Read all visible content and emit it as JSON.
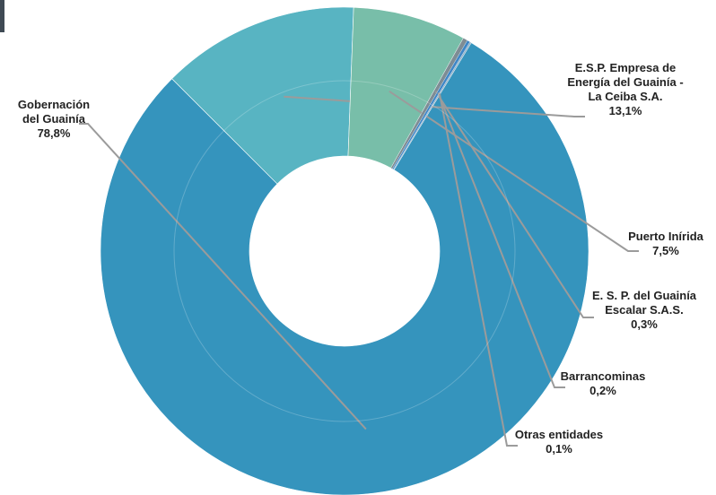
{
  "chart_data": {
    "type": "pie",
    "subtype": "donut",
    "slices": [
      {
        "name_lines": [
          "Gobernación",
          "del Guainía"
        ],
        "value": 78.8,
        "value_label": "78,8%",
        "color": "#3594bd"
      },
      {
        "name_lines": [
          "E.S.P. Empresa de",
          "Energía del Guainía -",
          "La Ceiba S.A."
        ],
        "value": 13.1,
        "value_label": "13,1%",
        "color": "#58b4c2"
      },
      {
        "name_lines": [
          "Puerto Inírida"
        ],
        "value": 7.5,
        "value_label": "7,5%",
        "color": "#78bea9"
      },
      {
        "name_lines": [
          "E. S. P. del Guainía",
          "Escalar S.A.S."
        ],
        "value": 0.3,
        "value_label": "0,3%",
        "color": "#7e8c94"
      },
      {
        "name_lines": [
          "Barrancominas"
        ],
        "value": 0.2,
        "value_label": "0,2%",
        "color": "#3e86c6"
      },
      {
        "name_lines": [
          "Otras entidades"
        ],
        "value": 0.1,
        "value_label": "0,1%",
        "color": "#8fb1c8"
      }
    ],
    "legend": "none"
  }
}
